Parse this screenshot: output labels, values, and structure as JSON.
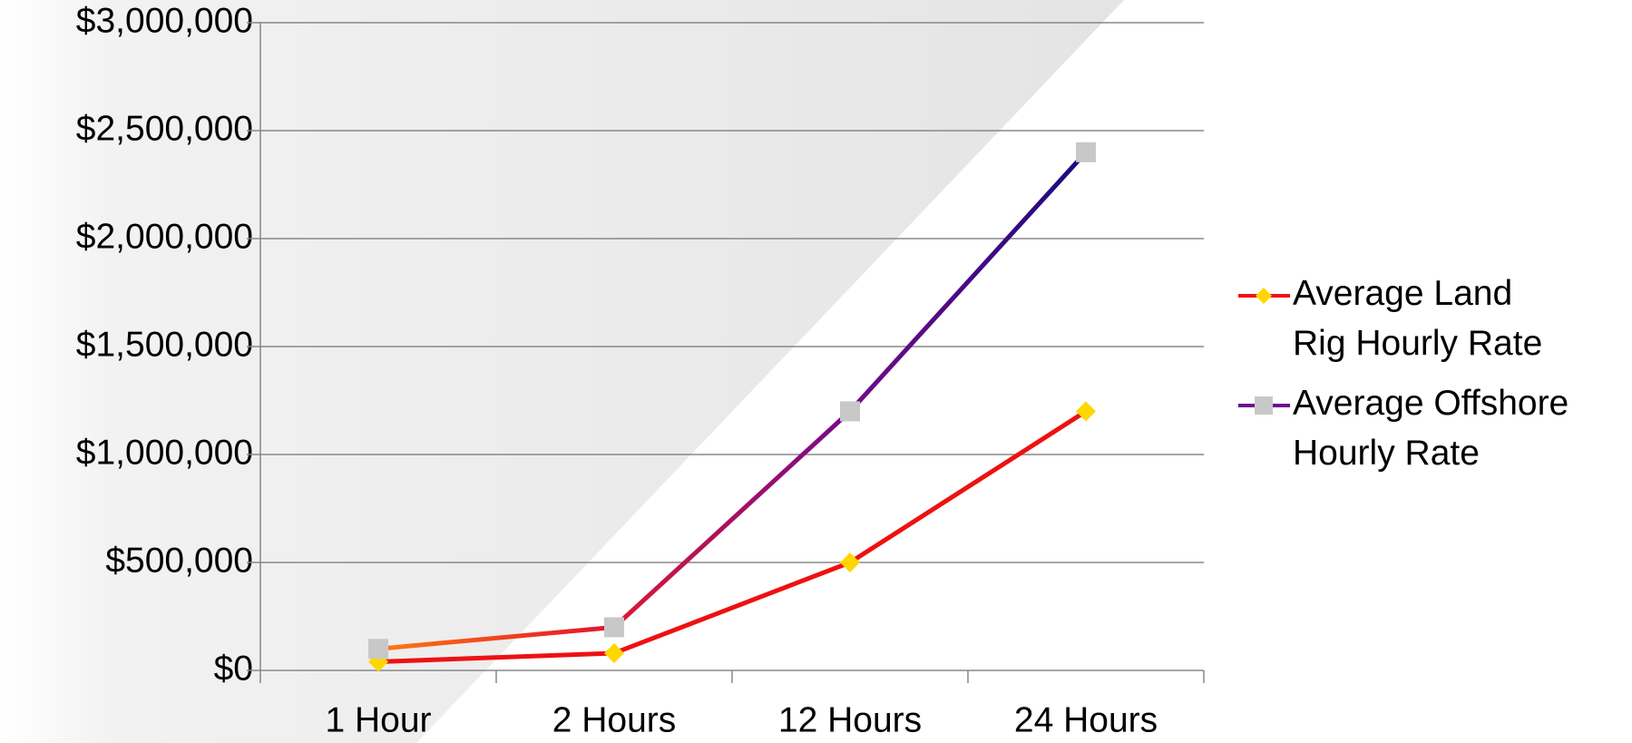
{
  "chart_data": {
    "type": "line",
    "categories": [
      "1 Hour",
      "2 Hours",
      "12 Hours",
      "24 Hours"
    ],
    "series": [
      {
        "name": "Average Land Rig Hourly Rate",
        "color": "#ee1111",
        "marker_color": "#ffd700",
        "marker": "diamond",
        "values": [
          40000,
          80000,
          500000,
          1200000
        ]
      },
      {
        "name": "Average Offshore Hourly Rate",
        "color": "#6a0f8e",
        "marker_color": "#c8c8c8",
        "marker": "square",
        "values": [
          100000,
          200000,
          1200000,
          2400000
        ]
      }
    ],
    "ylim": [
      0,
      3000000
    ],
    "yticks": [
      {
        "value": 0,
        "label": "$0"
      },
      {
        "value": 500000,
        "label": "$500,000"
      },
      {
        "value": 1000000,
        "label": "$1,000,000"
      },
      {
        "value": 1500000,
        "label": "$1,500,000"
      },
      {
        "value": 2000000,
        "label": "$2,000,000"
      },
      {
        "value": 2500000,
        "label": "$2,500,000"
      },
      {
        "value": 3000000,
        "label": "$3,000,000"
      }
    ],
    "grid": true,
    "legend": "right"
  }
}
